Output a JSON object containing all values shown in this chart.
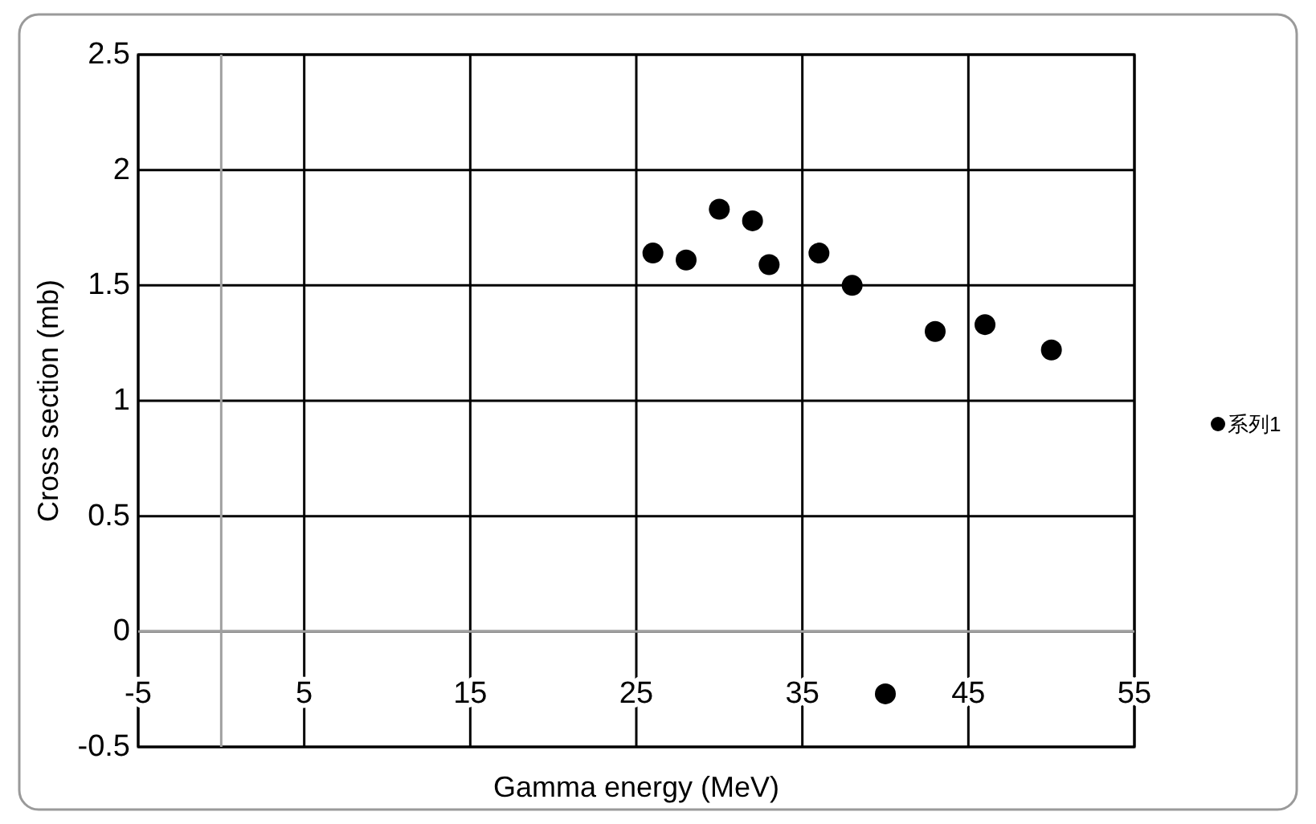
{
  "chart_data": {
    "type": "scatter",
    "xlabel": "Gamma energy (MeV)",
    "ylabel": "Cross section (mb)",
    "x": [
      26,
      28,
      30,
      32,
      33,
      36,
      38,
      40,
      43,
      46,
      50
    ],
    "series": [
      {
        "name": "系列1",
        "color": "#000000",
        "values": [
          1.64,
          1.61,
          1.83,
          1.78,
          1.59,
          1.64,
          1.5,
          -0.27,
          1.3,
          1.33,
          1.22
        ]
      }
    ],
    "xlim": [
      -5,
      55
    ],
    "xticks": [
      -5,
      5,
      15,
      25,
      35,
      45,
      55
    ],
    "ylim": [
      -0.5,
      2.5
    ],
    "yticks": [
      -0.5,
      0,
      0.5,
      1,
      1.5,
      2,
      2.5
    ],
    "grid": true,
    "legend": "right",
    "marker": "circle"
  }
}
